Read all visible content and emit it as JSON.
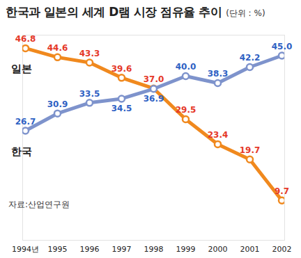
{
  "chart_data": {
    "type": "line",
    "title": "한국과 일본의 세계 D램 시장 점유율 추이",
    "subtitle": "(단위 : %)",
    "source": "자료:산업연구원",
    "categories": [
      "1994년",
      "1995",
      "1996",
      "1997",
      "1998",
      "1999",
      "2000",
      "2001",
      "2002"
    ],
    "series": [
      {
        "name": "일본",
        "color": "#f0891e",
        "marker": "circle",
        "values": [
          46.8,
          44.6,
          43.3,
          39.6,
          37.0,
          29.5,
          23.4,
          19.7,
          9.7
        ],
        "value_labels": [
          "46.8",
          "44.6",
          "43.3",
          "39.6",
          "37.0",
          "29.5",
          "23.4",
          "19.7",
          "9.7"
        ]
      },
      {
        "name": "한국",
        "color": "#7e93cc",
        "marker": "circle",
        "values": [
          26.7,
          30.9,
          33.5,
          34.5,
          36.9,
          40.0,
          38.3,
          42.2,
          45.0
        ],
        "value_labels": [
          "26.7",
          "30.9",
          "33.5",
          "34.5",
          "36.9",
          "40.0",
          "38.3",
          "42.2",
          "45.0"
        ]
      }
    ],
    "ylim": [
      0,
      50
    ],
    "grid": false,
    "data_labels": true,
    "tick_labels": "x"
  }
}
